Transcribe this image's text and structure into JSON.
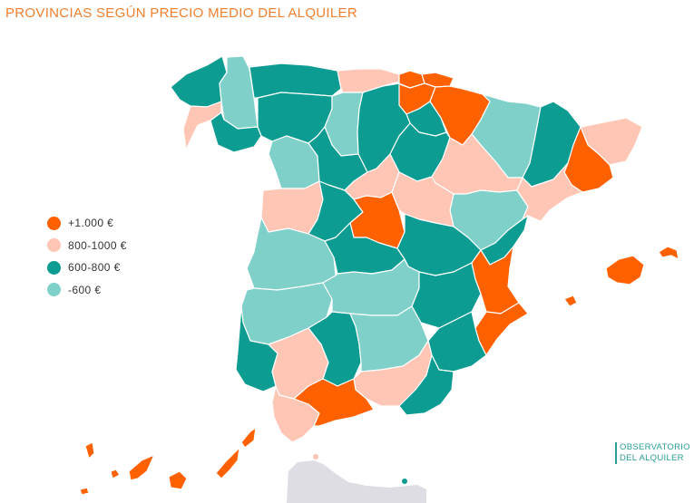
{
  "title": "Provincias según precio medio del alquiler",
  "colors": {
    "over_1000": "#ff6000",
    "r800_1000": "#ffc5b5",
    "r600_800": "#0c9c92",
    "under_600": "#7fd0c9",
    "africa": "#dddde3"
  },
  "legend": [
    {
      "label": "+1.000 €",
      "color": "#ff6000"
    },
    {
      "label": "800-1000 €",
      "color": "#ffc5b5"
    },
    {
      "label": "600-800 €",
      "color": "#0c9c92"
    },
    {
      "label": "-600 €",
      "color": "#7fd0c9"
    }
  ],
  "brand": {
    "line1": "Observatorio",
    "line2": "del alquiler"
  }
}
